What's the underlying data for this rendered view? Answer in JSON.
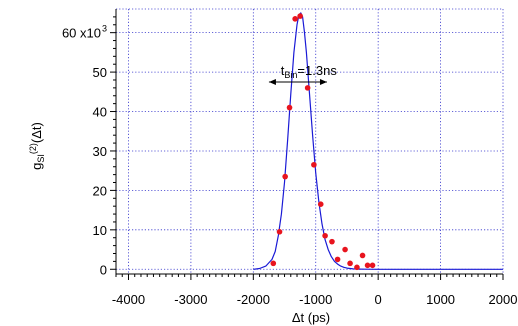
{
  "chart_data": {
    "type": "scatter",
    "ylabel_main": "g",
    "ylabel_sub": "SI",
    "ylabel_sup": "(2)",
    "ylabel_tail": "(Δt)",
    "xlabel": "Δt (ps)",
    "xlim": [
      -4200,
      2000
    ],
    "ylim": [
      -1200,
      66000
    ],
    "x_ticks": [
      -4000,
      -3000,
      -2000,
      -1000,
      0,
      1000,
      2000
    ],
    "y_ticks": [
      0,
      10000,
      20000,
      30000,
      40000,
      50000,
      60000
    ],
    "y_tick_labels": [
      "0",
      "10",
      "20",
      "30",
      "40",
      "50",
      "60 x10"
    ],
    "y_multiplier_sup": "3",
    "grid": true,
    "annotation": {
      "main": "t",
      "sub": "Bin",
      "tail": "=1.3ns",
      "arrow_from": -1750,
      "arrow_to": -820,
      "arrow_y": 47500
    },
    "series": [
      {
        "kind": "points",
        "color": "#e8141e",
        "x": [
          -1680,
          -1580,
          -1490,
          -1420,
          -1330,
          -1250,
          -1130,
          -1030,
          -920,
          -850,
          -740,
          -650,
          -530,
          -450,
          -340,
          -250,
          -170,
          -90
        ],
        "y": [
          1500,
          9500,
          23500,
          41000,
          63500,
          64200,
          46000,
          26500,
          16500,
          8500,
          7000,
          2500,
          5000,
          1500,
          500,
          3500,
          1000,
          1000
        ]
      },
      {
        "kind": "fit",
        "color": "#1a1ad6",
        "x": [
          -2000,
          -1900,
          -1800,
          -1700,
          -1650,
          -1600,
          -1550,
          -1500,
          -1450,
          -1400,
          -1350,
          -1300,
          -1270,
          -1240,
          -1210,
          -1180,
          -1150,
          -1100,
          -1050,
          -1000,
          -950,
          -900,
          -850,
          -800,
          -750,
          -700,
          -650,
          -600,
          -550,
          -500,
          -400,
          -300,
          -200,
          0,
          500,
          1000,
          1500,
          2000
        ],
        "y": [
          0,
          200,
          800,
          2500,
          4500,
          8500,
          14000,
          22000,
          33000,
          44500,
          55000,
          62000,
          64500,
          65000,
          64000,
          60000,
          55000,
          44500,
          34000,
          24500,
          17000,
          11500,
          7500,
          5000,
          3200,
          2000,
          1300,
          800,
          500,
          300,
          100,
          50,
          20,
          0,
          0,
          0,
          0,
          0
        ]
      }
    ]
  }
}
